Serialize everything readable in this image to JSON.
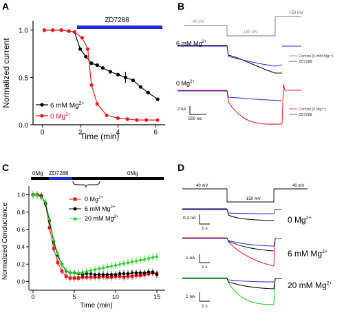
{
  "panels": {
    "A": {
      "letter": "A",
      "drug_label": "ZD7288",
      "xlabel": "Time (min)",
      "ylabel": "Normalized current",
      "xticks": [
        "0",
        "2",
        "4",
        "6"
      ],
      "yticks": [
        "1.0",
        "0.5",
        "0.0"
      ],
      "legend": [
        {
          "name": "6 mM Mg",
          "sup": "2+",
          "color": "#000000"
        },
        {
          "name": "0 Mg",
          "sup": "2+",
          "color": "#e8181e"
        }
      ]
    },
    "B": {
      "letter": "B",
      "v_hold": "-40 mV",
      "v_step": "-150 mV",
      "v_post": "+50 mV",
      "cond1": "6 mM Mg",
      "cond1_sup": "2+",
      "cond2": "0 Mg",
      "cond2_sup": "2+",
      "legend1": [
        "Control (6 mM Mg²⁺)",
        "ZD7288"
      ],
      "legend2": [
        "Control (0 Mg²⁺)",
        "ZD7288"
      ],
      "scale_y": "2 nA",
      "scale_x": "500 ms"
    },
    "C": {
      "letter": "C",
      "bar_left": "0Mg",
      "bar_drug": "ZD7288",
      "bar_right": "0Mg",
      "xlabel": "Time (min)",
      "ylabel": "Normalized Conductance",
      "xticks": [
        "0",
        "5",
        "10",
        "15"
      ],
      "yticks": [
        "1.0",
        "0.8",
        "0.6",
        "0.4",
        "0.2",
        "0.0"
      ],
      "legend": [
        {
          "name": "0 Mg",
          "sup": "2+",
          "color": "#e8181e"
        },
        {
          "name": "6 mM Mg",
          "sup": "2+",
          "color": "#000000"
        },
        {
          "name": "20 mM Mg",
          "sup": "2+",
          "color": "#22d022"
        }
      ]
    },
    "D": {
      "letter": "D",
      "v_hold_left": "40 mV",
      "v_step": "-150 mV",
      "v_hold_right": "40 mV",
      "rows": [
        {
          "label": "0 Mg",
          "sup": "2+",
          "scale_y": "0.2 nA",
          "scale_x": "1 s"
        },
        {
          "label": "6 mM  Mg",
          "sup": "2+",
          "scale_y": "1 nA",
          "scale_x": "1 s"
        },
        {
          "label": "20 mM  Mg",
          "sup": "2+",
          "scale_y": "1 nA",
          "scale_x": "1 s"
        }
      ]
    }
  },
  "chart_data": [
    {
      "type": "line",
      "panel": "A",
      "xlabel": "Time (min)",
      "ylabel": "Normalized current",
      "xlim": [
        -0.5,
        6.5
      ],
      "ylim": [
        0,
        1.1
      ],
      "series": [
        {
          "name": "6 mM Mg2+",
          "color": "#000000",
          "x": [
            0.1,
            0.55,
            1.0,
            1.4,
            1.7,
            2.0,
            2.3,
            2.6,
            2.9,
            3.2,
            3.6,
            4.0,
            4.4,
            4.8,
            5.2,
            5.6,
            6.1
          ],
          "y": [
            1.0,
            1.0,
            1.0,
            0.99,
            0.98,
            0.8,
            0.72,
            0.65,
            0.63,
            0.6,
            0.56,
            0.53,
            0.5,
            0.47,
            0.4,
            0.34,
            0.27
          ]
        },
        {
          "name": "0 Mg2+",
          "color": "#e8181e",
          "x": [
            0.1,
            0.55,
            1.0,
            1.4,
            1.7,
            2.1,
            2.4,
            2.6,
            2.9,
            3.4,
            4.0,
            4.5,
            5.0,
            5.5,
            6.1
          ],
          "y": [
            1.0,
            1.0,
            1.0,
            0.99,
            0.98,
            0.92,
            0.8,
            0.42,
            0.22,
            0.1,
            0.07,
            0.06,
            0.05,
            0.05,
            0.05
          ]
        }
      ]
    },
    {
      "type": "line",
      "panel": "C",
      "xlabel": "Time (min)",
      "ylabel": "Normalized Conductance",
      "xlim": [
        -0.5,
        16
      ],
      "ylim": [
        -0.1,
        1.1
      ],
      "series": [
        {
          "name": "0 Mg2+",
          "color": "#e8181e",
          "x": [
            0,
            0.5,
            1,
            1.5,
            2,
            2.5,
            3,
            3.5,
            4,
            4.5,
            5,
            5.5,
            6,
            6.5,
            7,
            7.5,
            8,
            8.5,
            9,
            9.5,
            10,
            10.5,
            11,
            11.5,
            12,
            12.5,
            13,
            13.5,
            14,
            14.5,
            15
          ],
          "y": [
            1.0,
            1.0,
            0.99,
            0.9,
            0.62,
            0.38,
            0.22,
            0.12,
            0.06,
            0.04,
            0.04,
            0.04,
            0.05,
            0.05,
            0.05,
            0.05,
            0.05,
            0.06,
            0.05,
            0.05,
            0.06,
            0.06,
            0.05,
            0.06,
            0.06,
            0.07,
            0.07,
            0.08,
            0.09,
            0.1,
            0.09
          ]
        },
        {
          "name": "6 mM Mg2+",
          "color": "#000000",
          "x": [
            0,
            0.5,
            1,
            1.5,
            2,
            2.5,
            3,
            3.5,
            4,
            4.5,
            5,
            5.5,
            6,
            6.5,
            7,
            7.5,
            8,
            8.5,
            9,
            9.5,
            10,
            10.5,
            11,
            11.5,
            12,
            12.5,
            13,
            13.5,
            14,
            14.5,
            15
          ],
          "y": [
            1.0,
            1.0,
            0.98,
            0.9,
            0.7,
            0.46,
            0.3,
            0.2,
            0.12,
            0.1,
            0.1,
            0.09,
            0.08,
            0.09,
            0.09,
            0.08,
            0.08,
            0.08,
            0.08,
            0.08,
            0.08,
            0.09,
            0.09,
            0.09,
            0.1,
            0.1,
            0.1,
            0.1,
            0.11,
            0.11,
            0.08
          ]
        },
        {
          "name": "20 mM Mg2+",
          "color": "#22d022",
          "x": [
            0,
            0.5,
            1,
            1.5,
            2,
            2.5,
            3,
            3.5,
            4,
            4.5,
            5,
            5.5,
            6,
            6.5,
            7,
            7.5,
            8,
            8.5,
            9,
            9.5,
            10,
            10.5,
            11,
            11.5,
            12,
            12.5,
            13,
            13.5,
            14,
            14.5,
            15
          ],
          "y": [
            1.0,
            1.0,
            0.97,
            0.92,
            0.72,
            0.48,
            0.32,
            0.2,
            0.13,
            0.1,
            0.1,
            0.1,
            0.11,
            0.12,
            0.13,
            0.14,
            0.15,
            0.16,
            0.17,
            0.18,
            0.19,
            0.2,
            0.21,
            0.22,
            0.23,
            0.24,
            0.25,
            0.26,
            0.27,
            0.28,
            0.29
          ]
        }
      ]
    }
  ]
}
